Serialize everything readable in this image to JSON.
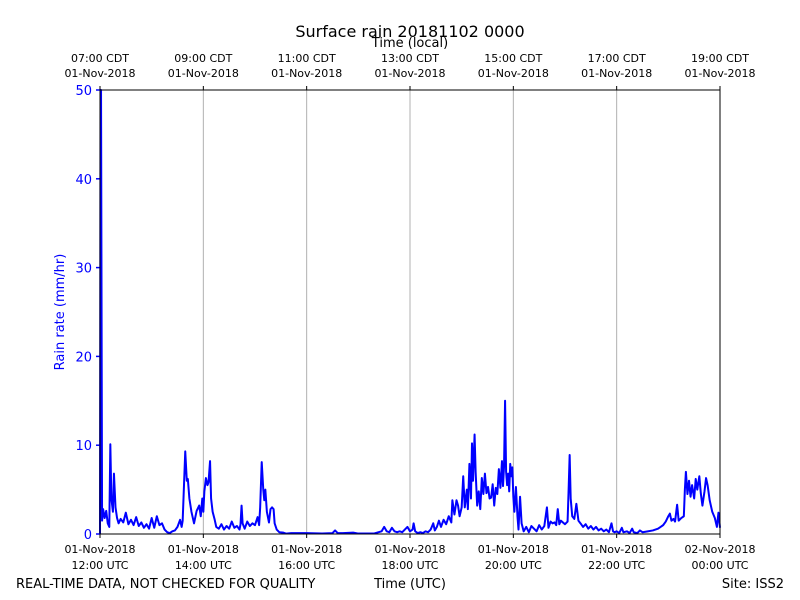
{
  "chart_data": {
    "type": "line",
    "title": "Surface rain 20181102 0000",
    "top_axis_label": "Time (local)",
    "xlabel": "Time (UTC)",
    "ylabel": "Rain rate (mm/hr)",
    "ylim": [
      0,
      50
    ],
    "y_ticks": [
      0,
      10,
      20,
      30,
      40,
      50
    ],
    "xlim_hours": [
      0,
      12
    ],
    "grid": "vertical",
    "x_ticks": [
      {
        "hours": 0,
        "utc_date": "01-Nov-2018",
        "utc_time": "12:00 UTC",
        "local_time": "07:00 CDT",
        "local_date": "01-Nov-2018"
      },
      {
        "hours": 2,
        "utc_date": "01-Nov-2018",
        "utc_time": "14:00 UTC",
        "local_time": "09:00 CDT",
        "local_date": "01-Nov-2018"
      },
      {
        "hours": 4,
        "utc_date": "01-Nov-2018",
        "utc_time": "16:00 UTC",
        "local_time": "11:00 CDT",
        "local_date": "01-Nov-2018"
      },
      {
        "hours": 6,
        "utc_date": "01-Nov-2018",
        "utc_time": "18:00 UTC",
        "local_time": "13:00 CDT",
        "local_date": "01-Nov-2018"
      },
      {
        "hours": 8,
        "utc_date": "01-Nov-2018",
        "utc_time": "20:00 UTC",
        "local_time": "15:00 CDT",
        "local_date": "01-Nov-2018"
      },
      {
        "hours": 10,
        "utc_date": "01-Nov-2018",
        "utc_time": "22:00 UTC",
        "local_time": "17:00 CDT",
        "local_date": "01-Nov-2018"
      },
      {
        "hours": 12,
        "utc_date": "02-Nov-2018",
        "utc_time": "00:00 UTC",
        "local_time": "19:00 CDT",
        "local_date": "01-Nov-2018"
      }
    ],
    "series": [
      {
        "name": "Rain rate",
        "color": "#0000ff",
        "points": [
          [
            0.0,
            0
          ],
          [
            0.01,
            50
          ],
          [
            0.02,
            50
          ],
          [
            0.04,
            1.5
          ],
          [
            0.06,
            2.8
          ],
          [
            0.09,
            1.8
          ],
          [
            0.12,
            2.6
          ],
          [
            0.15,
            1.2
          ],
          [
            0.18,
            0.8
          ],
          [
            0.2,
            10.1
          ],
          [
            0.22,
            4
          ],
          [
            0.25,
            2.5
          ],
          [
            0.27,
            6.8
          ],
          [
            0.3,
            3
          ],
          [
            0.33,
            1.8
          ],
          [
            0.36,
            1.2
          ],
          [
            0.4,
            1.7
          ],
          [
            0.45,
            1.3
          ],
          [
            0.5,
            2.4
          ],
          [
            0.55,
            1.1
          ],
          [
            0.6,
            1.6
          ],
          [
            0.65,
            1.0
          ],
          [
            0.7,
            1.9
          ],
          [
            0.75,
            0.9
          ],
          [
            0.8,
            1.3
          ],
          [
            0.85,
            0.7
          ],
          [
            0.9,
            1.1
          ],
          [
            0.95,
            0.6
          ],
          [
            1.0,
            1.8
          ],
          [
            1.05,
            0.7
          ],
          [
            1.1,
            2.0
          ],
          [
            1.15,
            1.0
          ],
          [
            1.2,
            1.2
          ],
          [
            1.25,
            0.5
          ],
          [
            1.3,
            0.2
          ],
          [
            1.35,
            0.1
          ],
          [
            1.4,
            0.3
          ],
          [
            1.45,
            0.4
          ],
          [
            1.5,
            0.8
          ],
          [
            1.55,
            1.6
          ],
          [
            1.58,
            0.8
          ],
          [
            1.6,
            1.5
          ],
          [
            1.65,
            9.3
          ],
          [
            1.68,
            6
          ],
          [
            1.7,
            6.2
          ],
          [
            1.73,
            4
          ],
          [
            1.77,
            2.5
          ],
          [
            1.82,
            1.2
          ],
          [
            1.87,
            2.6
          ],
          [
            1.92,
            3.2
          ],
          [
            1.95,
            2
          ],
          [
            1.98,
            4
          ],
          [
            2.0,
            2.5
          ],
          [
            2.02,
            4.8
          ],
          [
            2.05,
            6.3
          ],
          [
            2.08,
            5.5
          ],
          [
            2.1,
            5.8
          ],
          [
            2.13,
            8.2
          ],
          [
            2.15,
            4
          ],
          [
            2.18,
            2.5
          ],
          [
            2.22,
            1.6
          ],
          [
            2.25,
            0.8
          ],
          [
            2.3,
            0.6
          ],
          [
            2.35,
            1.1
          ],
          [
            2.4,
            0.5
          ],
          [
            2.45,
            0.9
          ],
          [
            2.5,
            0.6
          ],
          [
            2.55,
            1.4
          ],
          [
            2.6,
            0.7
          ],
          [
            2.65,
            0.9
          ],
          [
            2.7,
            0.5
          ],
          [
            2.72,
            1.1
          ],
          [
            2.74,
            3.2
          ],
          [
            2.76,
            1.2
          ],
          [
            2.8,
            0.6
          ],
          [
            2.85,
            1.4
          ],
          [
            2.9,
            0.9
          ],
          [
            2.95,
            1.2
          ],
          [
            3.0,
            1.0
          ],
          [
            3.05,
            1.9
          ],
          [
            3.08,
            1.0
          ],
          [
            3.1,
            3
          ],
          [
            3.13,
            8.1
          ],
          [
            3.16,
            5
          ],
          [
            3.18,
            3.8
          ],
          [
            3.2,
            5
          ],
          [
            3.23,
            2.5
          ],
          [
            3.27,
            1.3
          ],
          [
            3.3,
            2.8
          ],
          [
            3.33,
            3.0
          ],
          [
            3.36,
            2.8
          ],
          [
            3.38,
            1.2
          ],
          [
            3.42,
            0.5
          ],
          [
            3.47,
            0.2
          ],
          [
            3.55,
            0.15
          ],
          [
            3.6,
            0.05
          ],
          [
            3.7,
            0.1
          ],
          [
            4.0,
            0.1
          ],
          [
            4.3,
            0.05
          ],
          [
            4.5,
            0.1
          ],
          [
            4.55,
            0.4
          ],
          [
            4.6,
            0.1
          ],
          [
            4.7,
            0.1
          ],
          [
            4.9,
            0.15
          ],
          [
            5.0,
            0.05
          ],
          [
            5.3,
            0.05
          ],
          [
            5.45,
            0.3
          ],
          [
            5.5,
            0.8
          ],
          [
            5.55,
            0.3
          ],
          [
            5.6,
            0.2
          ],
          [
            5.65,
            0.7
          ],
          [
            5.7,
            0.3
          ],
          [
            5.75,
            0.2
          ],
          [
            5.8,
            0.3
          ],
          [
            5.85,
            0.2
          ],
          [
            5.9,
            0.5
          ],
          [
            5.95,
            0.8
          ],
          [
            6.0,
            0.3
          ],
          [
            6.05,
            0.5
          ],
          [
            6.07,
            1.2
          ],
          [
            6.1,
            0.3
          ],
          [
            6.15,
            0.1
          ],
          [
            6.2,
            0.2
          ],
          [
            6.25,
            0.1
          ],
          [
            6.3,
            0.3
          ],
          [
            6.35,
            0.2
          ],
          [
            6.4,
            0.5
          ],
          [
            6.45,
            1.2
          ],
          [
            6.48,
            0.4
          ],
          [
            6.52,
            0.8
          ],
          [
            6.56,
            1.5
          ],
          [
            6.6,
            0.8
          ],
          [
            6.65,
            1.6
          ],
          [
            6.7,
            1.1
          ],
          [
            6.75,
            2.0
          ],
          [
            6.8,
            1.3
          ],
          [
            6.82,
            3.8
          ],
          [
            6.86,
            2.2
          ],
          [
            6.9,
            3.8
          ],
          [
            6.93,
            3.2
          ],
          [
            6.96,
            2
          ],
          [
            7.0,
            3
          ],
          [
            7.03,
            6.5
          ],
          [
            7.06,
            3
          ],
          [
            7.1,
            5.0
          ],
          [
            7.12,
            2.8
          ],
          [
            7.15,
            7.9
          ],
          [
            7.18,
            4
          ],
          [
            7.2,
            10.2
          ],
          [
            7.22,
            6
          ],
          [
            7.25,
            11.2
          ],
          [
            7.27,
            7
          ],
          [
            7.3,
            3.2
          ],
          [
            7.33,
            4.8
          ],
          [
            7.36,
            2.8
          ],
          [
            7.39,
            6.3
          ],
          [
            7.42,
            4.5
          ],
          [
            7.45,
            6.8
          ],
          [
            7.48,
            4.6
          ],
          [
            7.51,
            5.3
          ],
          [
            7.54,
            4
          ],
          [
            7.57,
            4.1
          ],
          [
            7.6,
            5.6
          ],
          [
            7.63,
            3.2
          ],
          [
            7.66,
            5.2
          ],
          [
            7.69,
            4.5
          ],
          [
            7.72,
            7.3
          ],
          [
            7.75,
            5.2
          ],
          [
            7.78,
            8.2
          ],
          [
            7.8,
            5.4
          ],
          [
            7.82,
            7.6
          ],
          [
            7.84,
            15
          ],
          [
            7.86,
            7
          ],
          [
            7.88,
            5.5
          ],
          [
            7.9,
            6.8
          ],
          [
            7.92,
            4.8
          ],
          [
            7.94,
            7.9
          ],
          [
            7.96,
            6.5
          ],
          [
            7.98,
            7.5
          ],
          [
            8.0,
            4.2
          ],
          [
            8.02,
            2.5
          ],
          [
            8.05,
            5.3
          ],
          [
            8.08,
            2
          ],
          [
            8.1,
            0.5
          ],
          [
            8.13,
            4.2
          ],
          [
            8.16,
            1.2
          ],
          [
            8.2,
            0.3
          ],
          [
            8.25,
            0.8
          ],
          [
            8.3,
            0.2
          ],
          [
            8.35,
            0.9
          ],
          [
            8.4,
            0.6
          ],
          [
            8.45,
            0.3
          ],
          [
            8.5,
            1.0
          ],
          [
            8.55,
            0.5
          ],
          [
            8.6,
            0.9
          ],
          [
            8.65,
            3.0
          ],
          [
            8.68,
            0.7
          ],
          [
            8.72,
            1.4
          ],
          [
            8.76,
            1.2
          ],
          [
            8.8,
            1.3
          ],
          [
            8.83,
            1.0
          ],
          [
            8.86,
            2.8
          ],
          [
            8.89,
            1.1
          ],
          [
            8.92,
            1.5
          ],
          [
            9.0,
            1.1
          ],
          [
            9.05,
            1.4
          ],
          [
            9.07,
            5
          ],
          [
            9.09,
            8.9
          ],
          [
            9.11,
            4
          ],
          [
            9.14,
            2.0
          ],
          [
            9.18,
            1.7
          ],
          [
            9.22,
            3.4
          ],
          [
            9.26,
            1.5
          ],
          [
            9.3,
            1.2
          ],
          [
            9.35,
            0.8
          ],
          [
            9.4,
            1.1
          ],
          [
            9.45,
            0.6
          ],
          [
            9.5,
            0.9
          ],
          [
            9.55,
            0.5
          ],
          [
            9.6,
            0.8
          ],
          [
            9.65,
            0.4
          ],
          [
            9.7,
            0.6
          ],
          [
            9.75,
            0.3
          ],
          [
            9.8,
            0.5
          ],
          [
            9.85,
            0.2
          ],
          [
            9.9,
            1.2
          ],
          [
            9.93,
            0.3
          ],
          [
            9.96,
            0.2
          ],
          [
            10.0,
            0.3
          ],
          [
            10.05,
            0.1
          ],
          [
            10.1,
            0.7
          ],
          [
            10.13,
            0.2
          ],
          [
            10.2,
            0.3
          ],
          [
            10.25,
            0.1
          ],
          [
            10.3,
            0.6
          ],
          [
            10.33,
            0.2
          ],
          [
            10.4,
            0.1
          ],
          [
            10.45,
            0.4
          ],
          [
            10.5,
            0.2
          ],
          [
            10.6,
            0.3
          ],
          [
            10.7,
            0.4
          ],
          [
            10.8,
            0.6
          ],
          [
            10.85,
            0.8
          ],
          [
            10.9,
            1.0
          ],
          [
            10.95,
            1.4
          ],
          [
            11.0,
            2.0
          ],
          [
            11.03,
            2.3
          ],
          [
            11.06,
            1.5
          ],
          [
            11.1,
            1.7
          ],
          [
            11.13,
            1.4
          ],
          [
            11.17,
            3.3
          ],
          [
            11.2,
            1.5
          ],
          [
            11.25,
            1.8
          ],
          [
            11.3,
            2.0
          ],
          [
            11.32,
            5
          ],
          [
            11.34,
            7.0
          ],
          [
            11.37,
            4.5
          ],
          [
            11.4,
            6
          ],
          [
            11.43,
            4.2
          ],
          [
            11.46,
            5.5
          ],
          [
            11.5,
            4
          ],
          [
            11.53,
            6.2
          ],
          [
            11.56,
            5
          ],
          [
            11.6,
            6.5
          ],
          [
            11.63,
            4.5
          ],
          [
            11.66,
            3.2
          ],
          [
            11.7,
            4.8
          ],
          [
            11.73,
            6.3
          ],
          [
            11.76,
            5.5
          ],
          [
            11.8,
            3.8
          ],
          [
            11.85,
            2.5
          ],
          [
            11.9,
            1.8
          ],
          [
            11.94,
            0.8
          ],
          [
            11.97,
            2.4
          ],
          [
            12.0,
            0.7
          ]
        ]
      }
    ]
  },
  "footer": {
    "disclaimer": "REAL-TIME DATA, NOT CHECKED FOR QUALITY",
    "site": "Site: ISS2"
  }
}
